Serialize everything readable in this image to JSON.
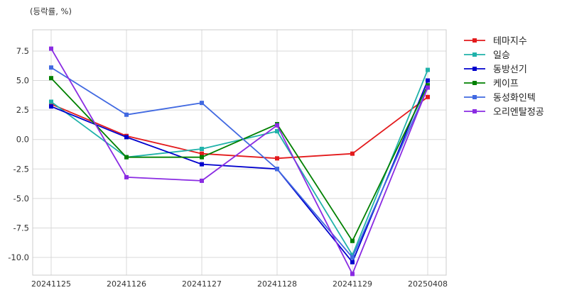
{
  "chart_data": {
    "type": "line",
    "unit_label": "(등락률, %)",
    "title": "",
    "xlabel": "",
    "ylabel": "",
    "categories": [
      "20241125",
      "20241126",
      "20241127",
      "20241128",
      "20241129",
      "20250408"
    ],
    "ylim": [
      -11.5,
      9.3
    ],
    "yticks": [
      -10.0,
      -7.5,
      -5.0,
      -2.5,
      0.0,
      2.5,
      5.0,
      7.5
    ],
    "ytick_labels": [
      "-10.0",
      "-7.5",
      "-5.0",
      "-2.5",
      "0.0",
      "2.5",
      "5.0",
      "7.5"
    ],
    "grid": true,
    "legend_position": "outside-right",
    "series": [
      {
        "name": "테마지수",
        "color": "#e31a1c",
        "values": [
          3.0,
          0.3,
          -1.2,
          -1.6,
          -1.2,
          3.6
        ]
      },
      {
        "name": "일승",
        "color": "#20b2aa",
        "values": [
          3.2,
          -1.5,
          -0.8,
          0.7,
          -9.8,
          5.9
        ]
      },
      {
        "name": "동방선기",
        "color": "#0000cd",
        "values": [
          2.8,
          0.2,
          -2.1,
          -2.5,
          -10.4,
          5.0
        ]
      },
      {
        "name": "케이프",
        "color": "#008000",
        "values": [
          5.2,
          -1.5,
          -1.5,
          1.3,
          -8.6,
          4.6
        ]
      },
      {
        "name": "동성화인텍",
        "color": "#4169e1",
        "values": [
          6.1,
          2.1,
          3.1,
          -2.5,
          -10.0,
          4.4
        ]
      },
      {
        "name": "오리엔탈정공",
        "color": "#8a2be2",
        "values": [
          7.7,
          -3.2,
          -3.5,
          1.2,
          -11.4,
          4.4
        ]
      }
    ]
  }
}
